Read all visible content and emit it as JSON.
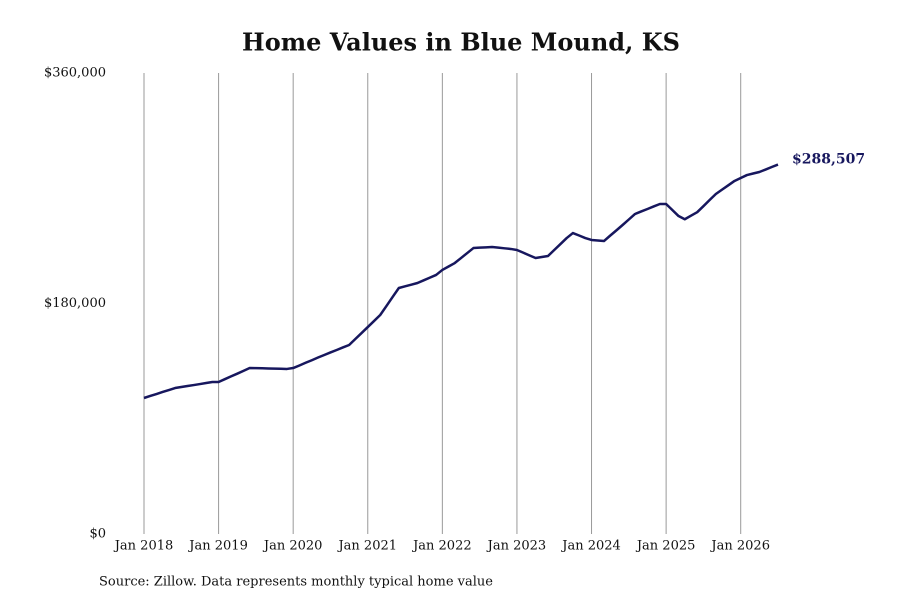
{
  "chart_data": {
    "type": "line",
    "title": "Home Values in Blue Mound, KS",
    "source": "Source: Zillow. Data represents monthly typical home value",
    "x": [
      "2018-01",
      "2018-02",
      "2018-03",
      "2018-04",
      "2018-05",
      "2018-06",
      "2018-07",
      "2018-08",
      "2018-09",
      "2018-10",
      "2018-11",
      "2018-12",
      "2019-01",
      "2019-02",
      "2019-03",
      "2019-04",
      "2019-05",
      "2019-06",
      "2019-07",
      "2019-08",
      "2019-09",
      "2019-10",
      "2019-11",
      "2019-12",
      "2020-01",
      "2020-02",
      "2020-03",
      "2020-04",
      "2020-05",
      "2020-06",
      "2020-07",
      "2020-08",
      "2020-09",
      "2020-10",
      "2020-11",
      "2020-12",
      "2021-01",
      "2021-02",
      "2021-03",
      "2021-04",
      "2021-05",
      "2021-06",
      "2021-07",
      "2021-08",
      "2021-09",
      "2021-10",
      "2021-11",
      "2021-12",
      "2022-01",
      "2022-02",
      "2022-03",
      "2022-04",
      "2022-05",
      "2022-06",
      "2022-07",
      "2022-08",
      "2022-09",
      "2022-10",
      "2022-11",
      "2022-12",
      "2023-01",
      "2023-02",
      "2023-03",
      "2023-04",
      "2023-05",
      "2023-06",
      "2023-07",
      "2023-08",
      "2023-09",
      "2023-10",
      "2023-11",
      "2023-12",
      "2024-01",
      "2024-02",
      "2024-03",
      "2024-04",
      "2024-05",
      "2024-06",
      "2024-07",
      "2024-08",
      "2024-09",
      "2024-10",
      "2024-11",
      "2024-12",
      "2025-01",
      "2025-02",
      "2025-03",
      "2025-04",
      "2025-05",
      "2025-06",
      "2025-07",
      "2025-08",
      "2025-09",
      "2025-10",
      "2025-11",
      "2025-12",
      "2026-01",
      "2026-02",
      "2026-03",
      "2026-04",
      "2026-05",
      "2026-06",
      "2026-07"
    ],
    "series": [
      {
        "name": "Typical home value",
        "color": "#17175e",
        "values": [
          106200,
          107800,
          109300,
          110900,
          112400,
          114000,
          114800,
          115600,
          116300,
          117100,
          117900,
          118700,
          118700,
          120900,
          123100,
          125200,
          127400,
          129600,
          129500,
          129400,
          129200,
          129100,
          129000,
          128900,
          129600,
          131600,
          133700,
          135700,
          137800,
          139800,
          141800,
          143700,
          145700,
          147600,
          152300,
          156900,
          161600,
          166300,
          171000,
          178000,
          185100,
          192100,
          193400,
          194700,
          196000,
          198100,
          200200,
          202300,
          206200,
          208900,
          211600,
          215500,
          219400,
          223300,
          223600,
          223800,
          224100,
          223600,
          223100,
          222600,
          221800,
          219700,
          217600,
          215500,
          216300,
          217100,
          221800,
          226400,
          231100,
          235000,
          233100,
          231100,
          229600,
          229200,
          228800,
          233000,
          237100,
          241300,
          245600,
          249900,
          251900,
          253800,
          255800,
          257700,
          257700,
          253000,
          248300,
          245800,
          248600,
          251300,
          256000,
          260800,
          265500,
          268900,
          272300,
          275700,
          278000,
          280300,
          281500,
          282700,
          284600,
          286600,
          288507
        ],
        "value_labels": [
          null,
          null,
          null,
          null,
          null,
          null,
          null,
          null,
          null,
          null,
          null,
          null,
          null,
          null,
          null,
          null,
          null,
          null,
          null,
          null,
          null,
          null,
          null,
          null,
          null,
          null,
          null,
          null,
          null,
          null,
          null,
          null,
          null,
          null,
          null,
          null,
          null,
          null,
          null,
          null,
          null,
          null,
          null,
          null,
          null,
          null,
          null,
          null,
          null,
          null,
          null,
          null,
          null,
          null,
          null,
          null,
          null,
          null,
          null,
          null,
          null,
          null,
          null,
          null,
          null,
          null,
          null,
          null,
          null,
          null,
          null,
          null,
          null,
          null,
          null,
          null,
          null,
          null,
          null,
          null,
          null,
          null,
          null,
          null,
          null,
          null,
          null,
          null,
          null,
          null,
          null,
          null,
          null,
          null,
          null,
          null,
          null,
          null,
          null,
          null,
          null,
          null,
          "$288,507"
        ]
      }
    ],
    "xlim": [
      "2018-01",
      "2026-07"
    ],
    "xticks": [
      {
        "value": "2018-01",
        "label": "Jan 2018"
      },
      {
        "value": "2019-01",
        "label": "Jan 2019"
      },
      {
        "value": "2020-01",
        "label": "Jan 2020"
      },
      {
        "value": "2021-01",
        "label": "Jan 2021"
      },
      {
        "value": "2022-01",
        "label": "Jan 2022"
      },
      {
        "value": "2023-01",
        "label": "Jan 2023"
      },
      {
        "value": "2024-01",
        "label": "Jan 2024"
      },
      {
        "value": "2025-01",
        "label": "Jan 2025"
      },
      {
        "value": "2026-01",
        "label": "Jan 2026"
      }
    ],
    "ylim": [
      0,
      360000
    ],
    "yticks": [
      {
        "value": 0,
        "label": "$0"
      },
      {
        "value": 180000,
        "label": "$180,000"
      },
      {
        "value": 360000,
        "label": "$360,000"
      }
    ],
    "grid": "x"
  }
}
